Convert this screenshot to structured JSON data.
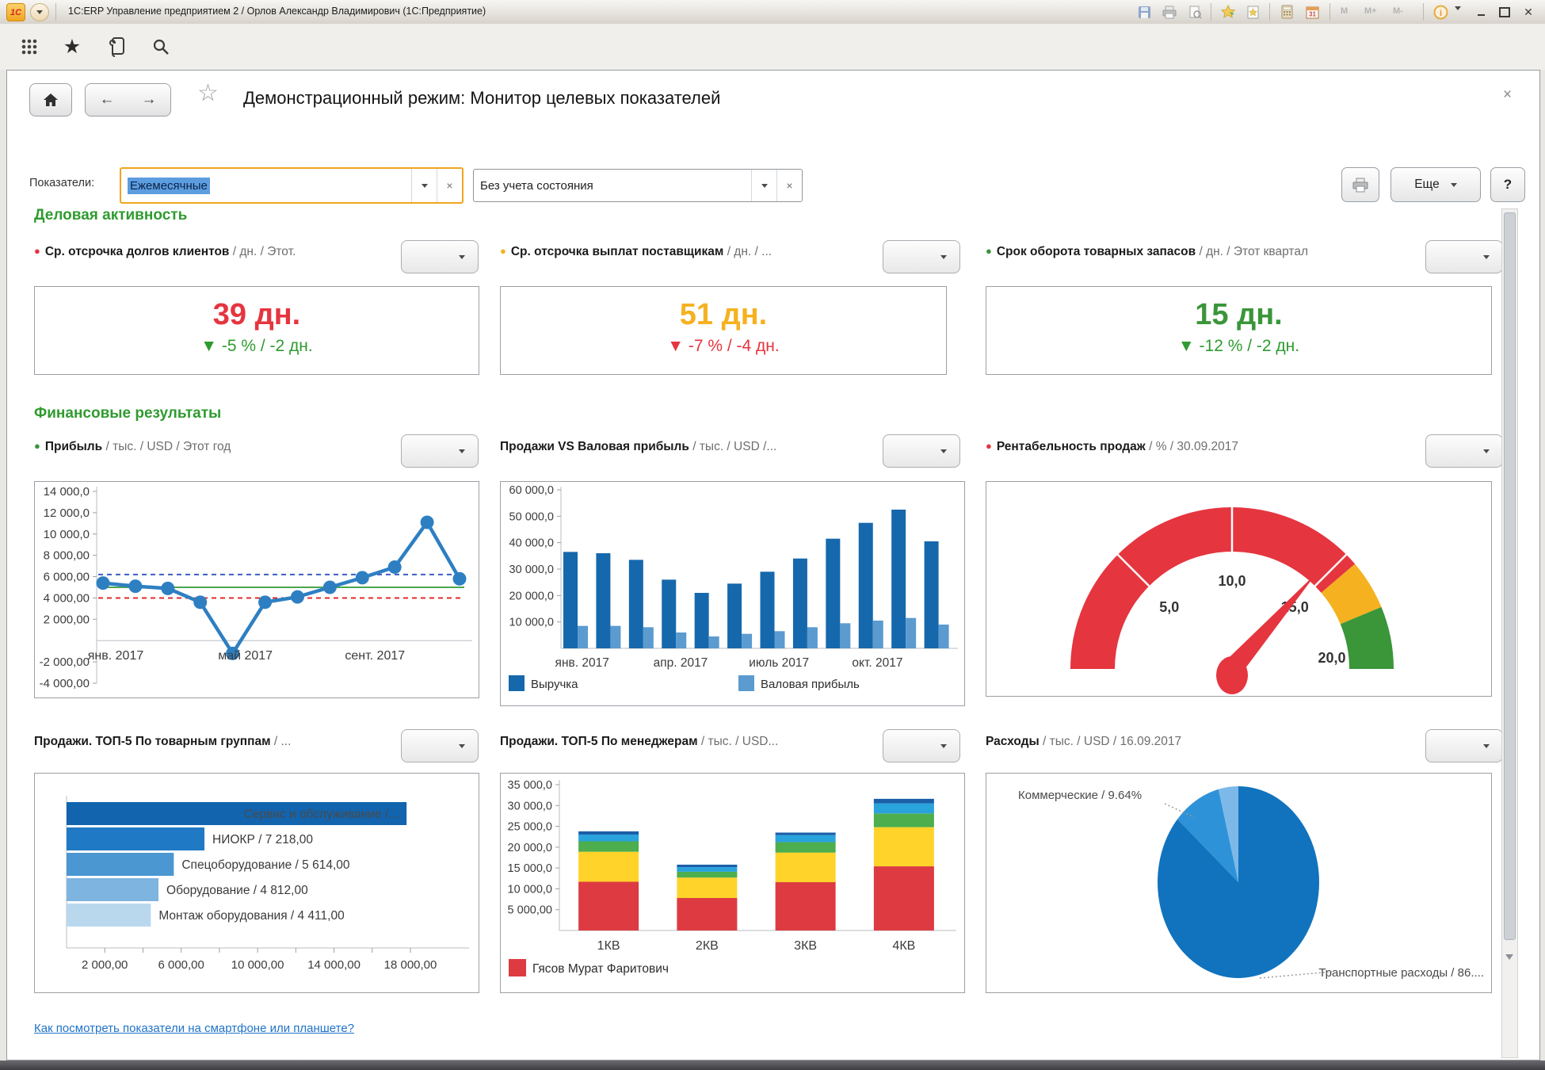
{
  "window": {
    "title": "1С:ERP Управление предприятием 2 / Орлов Александр Владимирович  (1С:Предприятие)",
    "memory": [
      "M",
      "M+",
      "M-"
    ],
    "calendar_day": "31",
    "info_glyph": "i",
    "close_glyph": "✕"
  },
  "header": {
    "title": "Демонстрационный режим: Монитор целевых показателей",
    "close_glyph": "×"
  },
  "filters": {
    "label": "Показатели:",
    "period_value": "Ежемесячные",
    "state_value": "Без учета состояния",
    "clear_glyph": "×",
    "more_label": "Еще",
    "help_label": "?"
  },
  "business": {
    "title": "Деловая активность",
    "kpis": [
      {
        "bullet_color": "#e5353f",
        "name": "Ср. отсрочка долгов клиентов",
        "units": " / дн. / Этот.",
        "value": "39 дн.",
        "value_color": "#e5353f",
        "delta_arrow": "▼",
        "delta_text": " -5 % / -2 дн.",
        "delta_color": "#2f9b2f"
      },
      {
        "bullet_color": "#f5b120",
        "name": "Ср. отсрочка выплат поставщикам",
        "units": " / дн. / ...",
        "value": "51 дн.",
        "value_color": "#f5b120",
        "delta_arrow": "▼",
        "delta_text": " -7 % / -4 дн.",
        "delta_color": "#e5353f"
      },
      {
        "bullet_color": "#3a9639",
        "name": "Срок оборота товарных запасов",
        "units": " / дн. / Этот квартал",
        "value": "15 дн.",
        "value_color": "#3a9639",
        "delta_arrow": "▼",
        "delta_text": " -12 % / -2 дн.",
        "delta_color": "#2f9b2f"
      }
    ]
  },
  "financial": {
    "title": "Финансовые результаты"
  },
  "panels": [
    {
      "bullet_color": "#3a9639",
      "name": "Прибыль",
      "units": " / тыс. / USD / Этот год"
    },
    {
      "bullet_color": null,
      "name": "Продажи VS Валовая прибыль",
      "units": " / тыс. / USD /..."
    },
    {
      "bullet_color": "#e5353f",
      "name": "Рентабельность продаж",
      "units": " / % / 30.09.2017"
    },
    {
      "bullet_color": null,
      "name": "Продажи. ТОП-5 По товарным группам",
      "units": " / ..."
    },
    {
      "bullet_color": null,
      "name": "Продажи. ТОП-5 По менеджерам",
      "units": " / тыс. / USD..."
    },
    {
      "bullet_color": null,
      "name": "Расходы",
      "units": " / тыс. / USD / 16.09.2017"
    }
  ],
  "chart_data": [
    {
      "type": "line",
      "name": "profit",
      "ylim": [
        -4000,
        14000
      ],
      "y_ticks": [
        {
          "v": 14000,
          "label": "14 000,0"
        },
        {
          "v": 12000,
          "label": "12 000,0"
        },
        {
          "v": 10000,
          "label": "10 000,0"
        },
        {
          "v": 8000,
          "label": "8 000,00"
        },
        {
          "v": 6000,
          "label": "6 000,00"
        },
        {
          "v": 4000,
          "label": "4 000,00"
        },
        {
          "v": 2000,
          "label": "2 000,00"
        },
        {
          "v": -2000,
          "label": "-2 000,00"
        },
        {
          "v": -4000,
          "label": "-4 000,00"
        }
      ],
      "x_labels": [
        {
          "i": 0,
          "label": "янв. 2017"
        },
        {
          "i": 4,
          "label": "май 2017"
        },
        {
          "i": 8,
          "label": "сент. 2017"
        }
      ],
      "values": [
        5400,
        5100,
        4900,
        3600,
        -1200,
        3600,
        4100,
        5000,
        5900,
        6900,
        11100,
        5800
      ],
      "line_color": "#2e7fc2",
      "ref_lines": [
        {
          "v": 6200,
          "color": "#3a5fc0",
          "dashed": true
        },
        {
          "v": 5000,
          "color": "#4ca64c",
          "dashed": false
        },
        {
          "v": 4000,
          "color": "#e02b2b",
          "dashed": true
        }
      ]
    },
    {
      "type": "grouped_bar",
      "name": "sales_vs_gross_profit",
      "ylim": [
        0,
        60000
      ],
      "y_ticks": [
        {
          "v": 60000,
          "label": "60 000,0"
        },
        {
          "v": 50000,
          "label": "50 000,0"
        },
        {
          "v": 40000,
          "label": "40 000,0"
        },
        {
          "v": 30000,
          "label": "30 000,0"
        },
        {
          "v": 20000,
          "label": "20 000,0"
        },
        {
          "v": 10000,
          "label": "10 000,0"
        }
      ],
      "x_labels": [
        {
          "i": 0,
          "label": "янв. 2017"
        },
        {
          "i": 3,
          "label": "апр. 2017"
        },
        {
          "i": 6,
          "label": "июль 2017"
        },
        {
          "i": 9,
          "label": "окт. 2017"
        }
      ],
      "series": [
        {
          "name": "Выручка",
          "color": "#1668ac",
          "values": [
            36500,
            36000,
            33500,
            26000,
            21000,
            24500,
            29000,
            34000,
            41500,
            47500,
            52500,
            40500
          ]
        },
        {
          "name": "Валовая прибыль",
          "color": "#5b9bd0",
          "values": [
            8500,
            8500,
            8000,
            6000,
            4500,
            5500,
            6500,
            8000,
            9500,
            10500,
            11500,
            9000
          ]
        }
      ]
    },
    {
      "type": "gauge",
      "name": "sales_profitability",
      "min": 0,
      "max": 20,
      "value": 14.6,
      "segments": [
        {
          "to": 15.5,
          "color": "#e5353f"
        },
        {
          "to": 17.5,
          "color": "#f5b120"
        },
        {
          "to": 20,
          "color": "#3a9639"
        }
      ],
      "ticks": [
        {
          "v": 5,
          "label": "5,0"
        },
        {
          "v": 10,
          "label": "10,0"
        },
        {
          "v": 15,
          "label": "15,0"
        },
        {
          "v": 20,
          "label": "20,0"
        }
      ],
      "needle_color": "#e5353f"
    },
    {
      "type": "hbar",
      "name": "top5_product_groups",
      "xlim": [
        0,
        19500
      ],
      "x_ticks": [
        {
          "v": 2000,
          "label": "2 000,00"
        },
        {
          "v": 6000,
          "label": "6 000,00"
        },
        {
          "v": 10000,
          "label": "10 000,00"
        },
        {
          "v": 14000,
          "label": "14 000,00"
        },
        {
          "v": 18000,
          "label": "18 000,00"
        }
      ],
      "bars": [
        {
          "label": "Сервис и обслуживание /...",
          "value": 17800,
          "color": "#1264ae",
          "label_inside": true
        },
        {
          "label": "НИОКР / 7 218,00",
          "value": 7218,
          "color": "#2079c4",
          "label_inside": false
        },
        {
          "label": "Спецоборудование / 5 614,00",
          "value": 5614,
          "color": "#4a97d2",
          "label_inside": false
        },
        {
          "label": "Оборудование / 4 812,00",
          "value": 4812,
          "color": "#7db4e0",
          "label_inside": false
        },
        {
          "label": "Монтаж оборудования / 4 411,00",
          "value": 4411,
          "color": "#b9d8ee",
          "label_inside": false
        }
      ]
    },
    {
      "type": "stacked_bar",
      "name": "top5_managers",
      "ylim": [
        0,
        35000
      ],
      "y_ticks": [
        {
          "v": 35000,
          "label": "35 000,0"
        },
        {
          "v": 30000,
          "label": "30 000,0"
        },
        {
          "v": 25000,
          "label": "25 000,0"
        },
        {
          "v": 20000,
          "label": "20 000,0"
        },
        {
          "v": 15000,
          "label": "15 000,0"
        },
        {
          "v": 10000,
          "label": "10 000,0"
        },
        {
          "v": 5000,
          "label": "5 000,00"
        }
      ],
      "categories": [
        "1КВ",
        "2КВ",
        "3КВ",
        "4КВ"
      ],
      "series": [
        {
          "name": "Гясов Мурат Фаритович",
          "color": "#dd3b41",
          "values": [
            11700,
            7800,
            11600,
            15400
          ]
        },
        {
          "name": "",
          "color": "#ffd32a",
          "values": [
            7200,
            4900,
            7100,
            9400
          ]
        },
        {
          "name": "",
          "color": "#4cae4c",
          "values": [
            2500,
            1400,
            2500,
            3300
          ]
        },
        {
          "name": "",
          "color": "#29a3dc",
          "values": [
            1600,
            1100,
            1700,
            2400
          ]
        },
        {
          "name": "",
          "color": "#1c5fa8",
          "values": [
            800,
            600,
            600,
            1100
          ]
        }
      ],
      "legend": [
        {
          "label": "Гясов Мурат Фаритович",
          "color": "#dd3b41"
        }
      ]
    },
    {
      "type": "pie",
      "name": "expenses",
      "slices": [
        {
          "label": "Транспортные расходы / 86....",
          "pct": 86.4,
          "color": "#1173bd"
        },
        {
          "label": "Коммерческие / 9.64%",
          "pct": 9.64,
          "color": "#2e92d8"
        },
        {
          "label": "",
          "pct": 3.96,
          "color": "#7db9e8"
        }
      ]
    }
  ],
  "footer": {
    "link": "Как посмотреть показатели на смартфоне или планшете?"
  }
}
